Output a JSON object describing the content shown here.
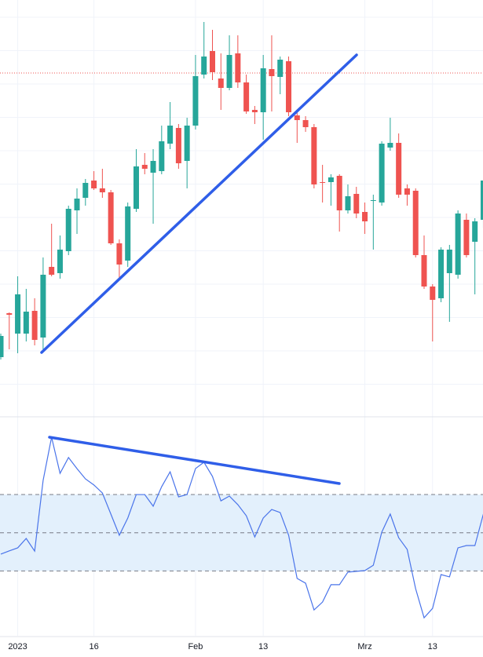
{
  "chart_data": [
    {
      "type": "candlestick",
      "categories": [
        null,
        null,
        "2023",
        null,
        null,
        null,
        null,
        null,
        null,
        null,
        null,
        "16",
        null,
        null,
        null,
        null,
        null,
        null,
        null,
        null,
        null,
        null,
        null,
        "Feb",
        null,
        null,
        null,
        null,
        null,
        null,
        null,
        "13",
        null,
        null,
        null,
        null,
        null,
        null,
        null,
        null,
        null,
        null,
        null,
        "Mrz",
        null,
        null,
        null,
        null,
        null,
        null,
        null,
        "13",
        null,
        null,
        null,
        null,
        null,
        null
      ],
      "open": [
        75,
        131,
        105,
        105,
        134,
        100,
        190,
        182,
        210,
        262,
        278,
        300,
        290,
        285,
        220,
        198,
        264,
        320,
        310,
        312,
        347,
        367,
        325,
        370,
        435,
        465,
        430,
        418,
        462,
        425,
        390,
        387,
        442,
        432,
        452,
        383,
        377,
        368,
        298,
        298,
        306,
        262,
        283,
        260,
        275,
        272,
        342,
        348,
        290,
        287,
        205,
        165,
        150,
        182,
        180,
        250,
        222,
        250
      ],
      "high": [
        105,
        132,
        178,
        162,
        150,
        202,
        245,
        230,
        268,
        290,
        302,
        312,
        315,
        288,
        225,
        272,
        340,
        335,
        340,
        370,
        400,
        372,
        380,
        460,
        502,
        492,
        462,
        485,
        485,
        435,
        395,
        460,
        485,
        458,
        458,
        390,
        382,
        372,
        320,
        308,
        308,
        295,
        292,
        272,
        282,
        350,
        380,
        360,
        295,
        290,
        230,
        168,
        215,
        218,
        262,
        258,
        252,
        300
      ],
      "low": [
        72,
        85,
        80,
        95,
        90,
        85,
        178,
        175,
        205,
        232,
        268,
        288,
        278,
        218,
        175,
        190,
        260,
        308,
        245,
        308,
        340,
        315,
        290,
        365,
        430,
        428,
        390,
        415,
        418,
        385,
        372,
        352,
        388,
        410,
        382,
        348,
        362,
        290,
        272,
        268,
        235,
        258,
        252,
        232,
        212,
        268,
        338,
        278,
        268,
        202,
        162,
        95,
        145,
        120,
        175,
        202,
        155,
        240
      ],
      "close": [
        102,
        129,
        155,
        133,
        97,
        180,
        180,
        212,
        264,
        277,
        297,
        290,
        285,
        220,
        193,
        267,
        318,
        315,
        325,
        350,
        370,
        322,
        370,
        433,
        458,
        438,
        418,
        460,
        425,
        388,
        387,
        443,
        433,
        454,
        387,
        377,
        368,
        295,
        297,
        304,
        262,
        280,
        258,
        248,
        275,
        347,
        348,
        282,
        282,
        205,
        165,
        148,
        212,
        212,
        258,
        205,
        248,
        300
      ],
      "up_color": "#26a69a",
      "down_color": "#ef5350",
      "ylim": [
        0,
        530
      ],
      "price_line": 437,
      "price_line_color": "#ef5350",
      "grid": true
    },
    {
      "type": "line",
      "values": [
        38.8,
        40.5,
        42.1,
        47.0,
        40.4,
        77.4,
        100,
        81.1,
        89.4,
        83.6,
        78.2,
        75,
        70.8,
        59.8,
        48.7,
        57.7,
        70,
        70,
        63.9,
        74.1,
        81.9,
        68.8,
        70,
        83.6,
        86.9,
        79.5,
        66.7,
        69.2,
        64.7,
        58.9,
        47.8,
        57.7,
        62.2,
        60.6,
        48.7,
        26.1,
        23.6,
        9.6,
        13.7,
        22.8,
        22.8,
        29.4,
        29.8,
        30.2,
        33,
        50.3,
        59.8,
        47.4,
        41.3,
        20.7,
        5.5,
        10.4,
        28.1,
        26.9,
        42.1,
        43.3,
        43.3,
        59.8
      ],
      "color": "#4a74ea",
      "ylim": [
        -6,
        107
      ],
      "levels": [
        70,
        50,
        30
      ],
      "band_color": "#e3f0fc"
    }
  ]
}
